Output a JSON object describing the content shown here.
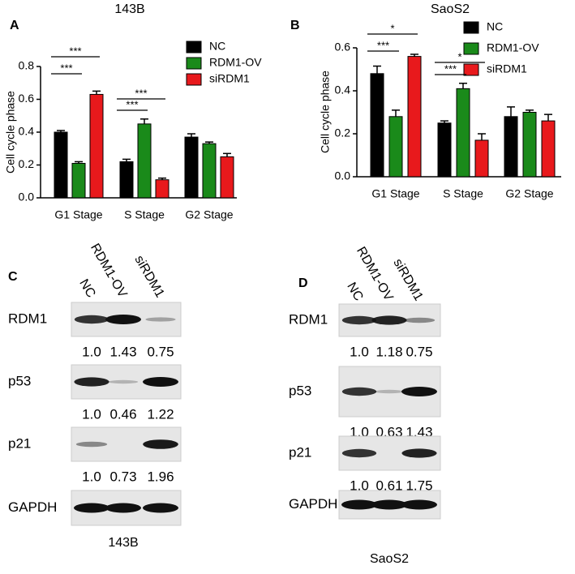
{
  "chart_data": [
    {
      "type": "bar",
      "title": "143B",
      "panel": "A",
      "y_label": "Cell cycle phase",
      "categories": [
        "G1 Stage",
        "S Stage",
        "G2 Stage"
      ],
      "series": [
        {
          "name": "NC",
          "color": "#000000",
          "values": [
            0.4,
            0.22,
            0.37
          ],
          "errors": [
            0.01,
            0.015,
            0.02
          ]
        },
        {
          "name": "RDM1-OV",
          "color": "#1a8a1a",
          "values": [
            0.21,
            0.45,
            0.33
          ],
          "errors": [
            0.01,
            0.03,
            0.01
          ]
        },
        {
          "name": "siRDM1",
          "color": "#e8191c",
          "values": [
            0.63,
            0.11,
            0.25
          ],
          "errors": [
            0.02,
            0.01,
            0.02
          ]
        }
      ],
      "ylim": [
        0,
        0.8
      ],
      "yticks": [
        {
          "value": 0,
          "label": "0.0"
        },
        0.2,
        0.4,
        0.6,
        0.8
      ],
      "annotations": [
        "***",
        "***",
        "***",
        "***"
      ]
    },
    {
      "type": "bar",
      "title": "SaoS2",
      "panel": "B",
      "y_label": "Cell cycle phase",
      "categories": [
        "G1 Stage",
        "S Stage",
        "G2 Stage"
      ],
      "series": [
        {
          "name": "NC",
          "color": "#000000",
          "values": [
            0.48,
            0.25,
            0.28
          ],
          "errors": [
            0.035,
            0.01,
            0.045
          ]
        },
        {
          "name": "RDM1-OV",
          "color": "#1a8a1a",
          "values": [
            0.28,
            0.41,
            0.3
          ],
          "errors": [
            0.03,
            0.025,
            0.01
          ]
        },
        {
          "name": "siRDM1",
          "color": "#e8191c",
          "values": [
            0.56,
            0.17,
            0.26
          ],
          "errors": [
            0.01,
            0.03,
            0.03
          ]
        }
      ],
      "ylim": [
        0,
        0.6
      ],
      "yticks": [
        {
          "value": 0,
          "label": "0.0"
        },
        0.2,
        0.4,
        0.6
      ],
      "annotations": [
        "*",
        "***",
        "*",
        "***"
      ]
    }
  ],
  "blots": [
    {
      "panel": "C",
      "lanes": [
        "NC",
        "RDM1-OV",
        "siRDM1"
      ],
      "caption": "143B",
      "rows": [
        {
          "label": "RDM1",
          "quant": [
            "1.0",
            "1.43",
            "0.75"
          ]
        },
        {
          "label": "p53",
          "quant": [
            "1.0",
            "0.46",
            "1.22"
          ]
        },
        {
          "label": "p21",
          "quant": [
            "1.0",
            "0.73",
            "1.96"
          ]
        },
        {
          "label": "GAPDH"
        }
      ]
    },
    {
      "panel": "D",
      "lanes": [
        "NC",
        "RDM1-OV",
        "siRDM1"
      ],
      "caption": "SaoS2",
      "rows": [
        {
          "label": "RDM1",
          "quant": [
            "1.0",
            "1.18",
            "0.75"
          ]
        },
        {
          "label": "p53",
          "quant": [
            "1.0",
            "0.63",
            "1.43"
          ]
        },
        {
          "label": "p21",
          "quant": [
            "1.0",
            "0.61",
            "1.75"
          ]
        },
        {
          "label": "GAPDH"
        }
      ]
    }
  ]
}
